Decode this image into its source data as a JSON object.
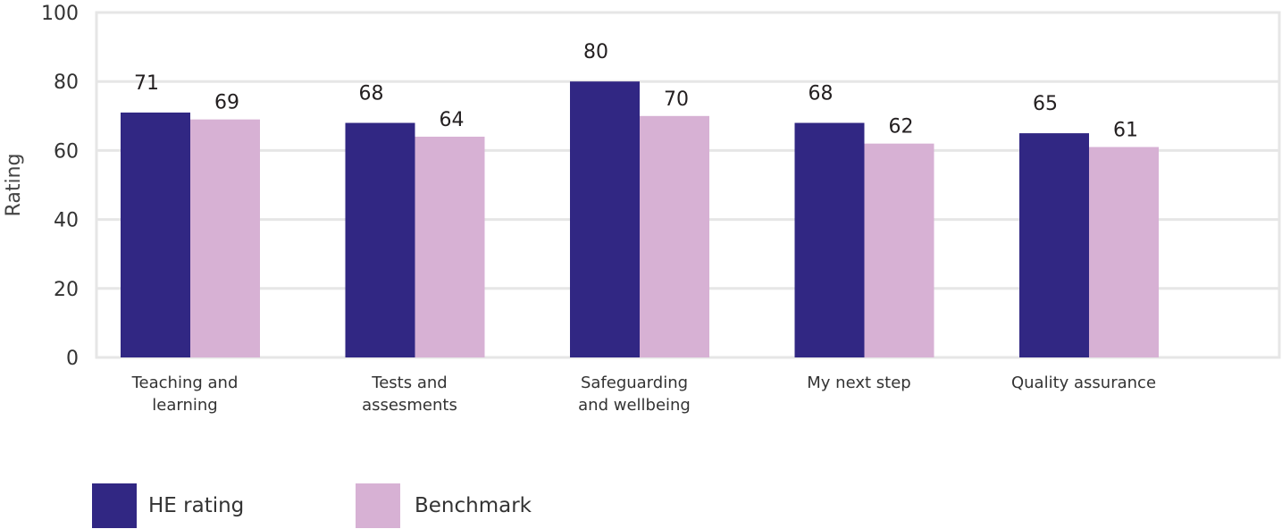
{
  "chart_data": {
    "type": "bar",
    "title": "",
    "xlabel": "",
    "ylabel": "Rating",
    "ylim": [
      0,
      100
    ],
    "yticks": [
      0,
      20,
      40,
      60,
      80,
      100
    ],
    "grid": true,
    "legend_position": "bottom-left",
    "categories": [
      [
        "Teaching and",
        "learning"
      ],
      [
        "Tests and",
        "assesments"
      ],
      [
        "Safeguarding",
        "and wellbeing"
      ],
      [
        "My next step"
      ],
      [
        "Quality assurance"
      ]
    ],
    "series": [
      {
        "name": "HE rating",
        "color": "#312783",
        "values": [
          71,
          68,
          80,
          68,
          65
        ]
      },
      {
        "name": "Benchmark",
        "color": "#d7b1d4",
        "values": [
          69,
          64,
          70,
          62,
          61
        ]
      }
    ]
  }
}
